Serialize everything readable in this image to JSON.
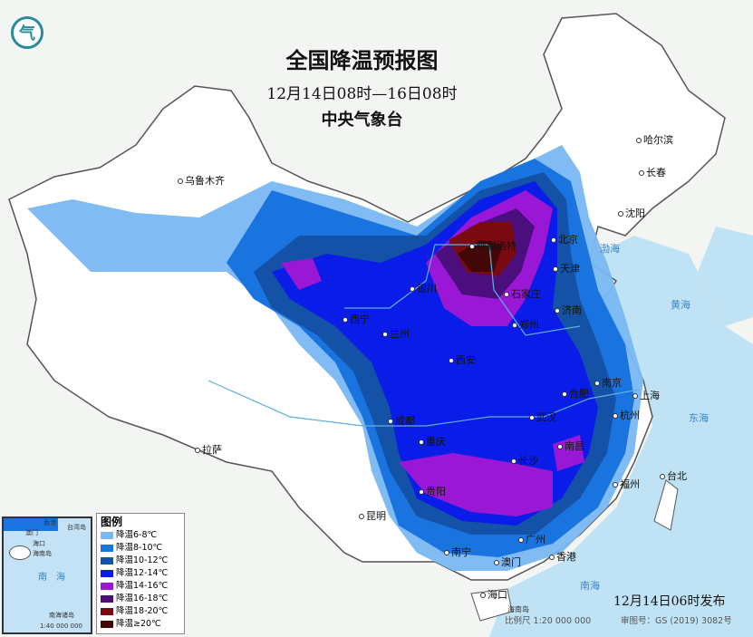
{
  "header": {
    "title": "全国降温预报图",
    "period": "12月14日08时—16日08时",
    "issuer": "中央气象台"
  },
  "logo": {
    "icon": "cma-logo-icon",
    "color": "#2a8c9a"
  },
  "legend": {
    "title": "图例",
    "items": [
      {
        "label": "降温6-8℃",
        "color": "#79b8f2"
      },
      {
        "label": "降温8-10℃",
        "color": "#1a74e0"
      },
      {
        "label": "降温10-12℃",
        "color": "#1452a8"
      },
      {
        "label": "降温12-14℃",
        "color": "#0a1de8"
      },
      {
        "label": "降温14-16℃",
        "color": "#9b17d6"
      },
      {
        "label": "降温16-18℃",
        "color": "#4a0f7c"
      },
      {
        "label": "降温18-20℃",
        "color": "#7a0a12"
      },
      {
        "label": "降温≥20℃",
        "color": "#420707"
      }
    ]
  },
  "cities": [
    {
      "name": "乌鲁木齐"
    },
    {
      "name": "哈尔滨"
    },
    {
      "name": "长春"
    },
    {
      "name": "沈阳"
    },
    {
      "name": "北京"
    },
    {
      "name": "天津"
    },
    {
      "name": "石家庄"
    },
    {
      "name": "济南"
    },
    {
      "name": "郑州"
    },
    {
      "name": "西安"
    },
    {
      "name": "兰州"
    },
    {
      "name": "西宁"
    },
    {
      "name": "银川"
    },
    {
      "name": "呼和浩特"
    },
    {
      "name": "合肥"
    },
    {
      "name": "南京"
    },
    {
      "name": "上海"
    },
    {
      "name": "杭州"
    },
    {
      "name": "武汉"
    },
    {
      "name": "长沙"
    },
    {
      "name": "南昌"
    },
    {
      "name": "成都"
    },
    {
      "name": "重庆"
    },
    {
      "name": "贵阳"
    },
    {
      "name": "拉萨"
    },
    {
      "name": "昆明"
    },
    {
      "name": "南宁"
    },
    {
      "name": "广州"
    },
    {
      "name": "香港"
    },
    {
      "name": "澳门"
    },
    {
      "name": "福州"
    },
    {
      "name": "台北"
    },
    {
      "name": "海口"
    }
  ],
  "seas": {
    "bohai": "渤海",
    "huanghai": "黄海",
    "donghai": "东海",
    "nanhai": "南海",
    "hainan": "海南岛"
  },
  "inset": {
    "nanhai": "南海",
    "islands": "南海诸岛",
    "scale": "1:40 000 000",
    "haikou": "海口",
    "hainan": "海南岛",
    "taiwan": "台湾岛",
    "macau": "澳门",
    "hongkong": "香港"
  },
  "footer": {
    "published": "12月14日06时发布",
    "scale": "比例尺 1:20 000 000",
    "map_number": "审图号：GS (2019) 3082号"
  }
}
